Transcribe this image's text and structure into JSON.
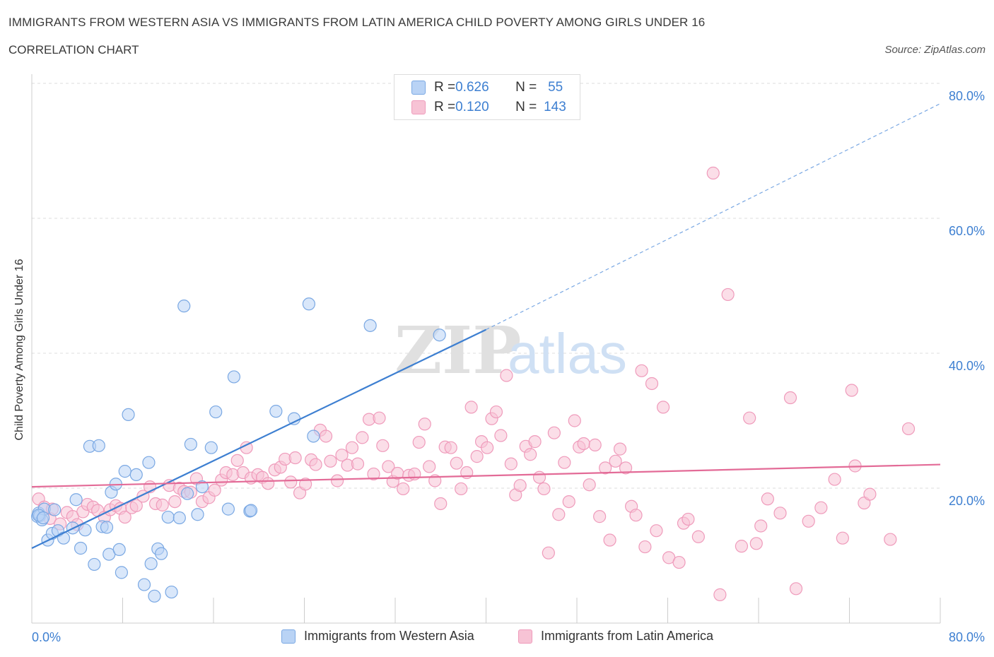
{
  "title": "IMMIGRANTS FROM WESTERN ASIA VS IMMIGRANTS FROM LATIN AMERICA CHILD POVERTY AMONG GIRLS UNDER 16",
  "subtitle": "CORRELATION CHART",
  "source": "Source: ZipAtlas.com",
  "watermark": {
    "zip": "ZIP",
    "atlas": "atlas"
  },
  "colors": {
    "blue": "#3d7fd1",
    "blue_fill": "#b9d3f5",
    "blue_stroke": "#7aa8e3",
    "pink": "#e36b97",
    "pink_fill": "#f7c3d5",
    "pink_stroke": "#ef9bbb",
    "grid": "#dcdcdc",
    "axis_text": "#3d7fd1"
  },
  "correlation_box": {
    "rows": [
      {
        "r_label": "R = ",
        "r_value": "0.626",
        "n_label": "N = ",
        "n_value": "55"
      },
      {
        "r_label": "R = ",
        "r_value": "0.120",
        "n_label": "N = ",
        "n_value": "143"
      }
    ]
  },
  "legend": {
    "items": [
      {
        "label": "Immigrants from Western Asia"
      },
      {
        "label": "Immigrants from Latin America"
      }
    ]
  },
  "chart_data": {
    "type": "scatter",
    "title": "IMMIGRANTS FROM WESTERN ASIA VS IMMIGRANTS FROM LATIN AMERICA CHILD POVERTY AMONG GIRLS UNDER 16",
    "subtitle": "CORRELATION CHART",
    "xlabel": "",
    "ylabel": "Child Poverty Among Girls Under 16",
    "xlim": [
      0,
      80
    ],
    "ylim": [
      0,
      80
    ],
    "x_tick_labels": [
      "0.0%",
      "80.0%"
    ],
    "y_tick_labels": [
      "20.0%",
      "40.0%",
      "60.0%",
      "80.0%"
    ],
    "y_ticks": [
      20,
      40,
      60,
      80
    ],
    "grid": true,
    "legend_position": "bottom",
    "series": [
      {
        "name": "Immigrants from Western Asia",
        "r": 0.626,
        "n": 55,
        "trend": {
          "x": [
            0,
            40
          ],
          "y": [
            11.1,
            43.5
          ],
          "extended_x": [
            40,
            80
          ],
          "extended_y": [
            43.5,
            77.0
          ]
        },
        "points": [
          [
            0.5,
            15.8
          ],
          [
            0.6,
            16.3
          ],
          [
            0.7,
            15.9
          ],
          [
            0.9,
            15.3
          ],
          [
            1.1,
            16.9
          ],
          [
            1.4,
            12.3
          ],
          [
            1.8,
            13.3
          ],
          [
            2.3,
            13.7
          ],
          [
            2.8,
            12.6
          ],
          [
            3.6,
            14.1
          ],
          [
            3.9,
            18.3
          ],
          [
            4.3,
            11.1
          ],
          [
            4.7,
            13.8
          ],
          [
            5.1,
            26.2
          ],
          [
            5.5,
            8.7
          ],
          [
            5.9,
            26.3
          ],
          [
            6.2,
            14.3
          ],
          [
            6.6,
            14.2
          ],
          [
            6.8,
            10.2
          ],
          [
            7.0,
            19.4
          ],
          [
            7.4,
            20.6
          ],
          [
            7.7,
            10.9
          ],
          [
            7.9,
            7.5
          ],
          [
            8.2,
            22.5
          ],
          [
            8.5,
            30.9
          ],
          [
            9.2,
            22.0
          ],
          [
            9.9,
            5.7
          ],
          [
            10.3,
            23.8
          ],
          [
            10.5,
            8.8
          ],
          [
            10.8,
            4.0
          ],
          [
            11.1,
            11.0
          ],
          [
            11.4,
            10.3
          ],
          [
            12.0,
            15.7
          ],
          [
            12.3,
            4.6
          ],
          [
            13.0,
            15.6
          ],
          [
            13.4,
            47.0
          ],
          [
            13.7,
            19.2
          ],
          [
            14.0,
            26.5
          ],
          [
            14.6,
            16.1
          ],
          [
            15.0,
            20.2
          ],
          [
            15.8,
            26.0
          ],
          [
            16.2,
            31.3
          ],
          [
            17.3,
            16.9
          ],
          [
            17.8,
            36.5
          ],
          [
            19.2,
            16.6
          ],
          [
            19.3,
            16.7
          ],
          [
            21.5,
            31.4
          ],
          [
            23.1,
            30.3
          ],
          [
            24.4,
            47.3
          ],
          [
            24.8,
            27.7
          ],
          [
            29.8,
            44.1
          ],
          [
            35.9,
            42.7
          ],
          [
            0.6,
            16.0
          ],
          [
            1.0,
            15.6
          ],
          [
            2.0,
            16.8
          ]
        ]
      },
      {
        "name": "Immigrants from Latin America",
        "r": 0.12,
        "n": 143,
        "trend": {
          "x": [
            0,
            80
          ],
          "y": [
            20.2,
            23.5
          ]
        },
        "points": [
          [
            0.6,
            18.4
          ],
          [
            1.1,
            17.2
          ],
          [
            1.6,
            15.5
          ],
          [
            1.8,
            16.9
          ],
          [
            2.5,
            14.7
          ],
          [
            3.1,
            16.4
          ],
          [
            3.6,
            15.8
          ],
          [
            4.0,
            14.6
          ],
          [
            4.5,
            16.5
          ],
          [
            4.9,
            17.6
          ],
          [
            5.4,
            17.2
          ],
          [
            5.8,
            16.7
          ],
          [
            6.4,
            15.7
          ],
          [
            6.9,
            16.8
          ],
          [
            7.4,
            17.4
          ],
          [
            7.8,
            17.0
          ],
          [
            8.2,
            15.7
          ],
          [
            8.8,
            17.1
          ],
          [
            9.2,
            17.4
          ],
          [
            9.8,
            18.8
          ],
          [
            10.4,
            20.2
          ],
          [
            10.9,
            17.7
          ],
          [
            11.5,
            17.5
          ],
          [
            12.1,
            20.4
          ],
          [
            12.6,
            18.0
          ],
          [
            13.0,
            20.0
          ],
          [
            13.4,
            19.5
          ],
          [
            14.0,
            19.4
          ],
          [
            14.5,
            21.4
          ],
          [
            15.0,
            18.0
          ],
          [
            15.6,
            18.6
          ],
          [
            16.1,
            19.7
          ],
          [
            16.7,
            21.2
          ],
          [
            17.1,
            22.3
          ],
          [
            17.7,
            22.0
          ],
          [
            18.1,
            24.1
          ],
          [
            18.6,
            22.3
          ],
          [
            18.9,
            26.0
          ],
          [
            19.3,
            21.5
          ],
          [
            19.9,
            22.0
          ],
          [
            20.3,
            21.6
          ],
          [
            20.8,
            20.7
          ],
          [
            21.4,
            22.7
          ],
          [
            21.9,
            23.1
          ],
          [
            22.3,
            24.3
          ],
          [
            22.8,
            20.9
          ],
          [
            23.2,
            24.5
          ],
          [
            23.6,
            19.3
          ],
          [
            24.1,
            20.6
          ],
          [
            24.6,
            24.2
          ],
          [
            25.0,
            23.5
          ],
          [
            25.4,
            28.6
          ],
          [
            25.9,
            27.7
          ],
          [
            26.3,
            24.0
          ],
          [
            26.9,
            21.1
          ],
          [
            27.3,
            24.9
          ],
          [
            27.8,
            23.4
          ],
          [
            28.2,
            26.0
          ],
          [
            28.7,
            23.6
          ],
          [
            29.1,
            27.5
          ],
          [
            29.7,
            30.2
          ],
          [
            30.1,
            22.1
          ],
          [
            30.6,
            30.4
          ],
          [
            30.9,
            26.3
          ],
          [
            31.4,
            23.2
          ],
          [
            31.8,
            21.0
          ],
          [
            32.2,
            22.2
          ],
          [
            32.7,
            19.9
          ],
          [
            33.2,
            21.9
          ],
          [
            33.7,
            22.1
          ],
          [
            34.1,
            26.8
          ],
          [
            34.6,
            29.5
          ],
          [
            35.0,
            23.2
          ],
          [
            35.5,
            21.1
          ],
          [
            36.0,
            17.7
          ],
          [
            36.4,
            26.1
          ],
          [
            36.9,
            26.0
          ],
          [
            37.4,
            23.7
          ],
          [
            37.8,
            19.9
          ],
          [
            38.3,
            22.3
          ],
          [
            38.7,
            32.0
          ],
          [
            39.2,
            24.7
          ],
          [
            39.6,
            26.9
          ],
          [
            40.1,
            26.0
          ],
          [
            40.5,
            30.3
          ],
          [
            40.9,
            31.3
          ],
          [
            41.3,
            27.8
          ],
          [
            41.8,
            36.7
          ],
          [
            42.2,
            23.6
          ],
          [
            42.6,
            19.0
          ],
          [
            43.0,
            20.4
          ],
          [
            43.5,
            26.2
          ],
          [
            43.9,
            25.0
          ],
          [
            44.3,
            26.9
          ],
          [
            44.7,
            21.6
          ],
          [
            45.1,
            19.9
          ],
          [
            45.5,
            10.4
          ],
          [
            46.0,
            28.2
          ],
          [
            46.4,
            16.1
          ],
          [
            46.9,
            23.8
          ],
          [
            47.3,
            18.0
          ],
          [
            47.8,
            30.0
          ],
          [
            48.2,
            26.1
          ],
          [
            48.6,
            26.6
          ],
          [
            49.1,
            20.5
          ],
          [
            49.6,
            26.4
          ],
          [
            50.0,
            15.8
          ],
          [
            50.5,
            23.0
          ],
          [
            50.9,
            12.3
          ],
          [
            51.4,
            24.0
          ],
          [
            51.8,
            25.8
          ],
          [
            52.3,
            23.0
          ],
          [
            52.8,
            17.3
          ],
          [
            53.2,
            16.0
          ],
          [
            53.7,
            37.4
          ],
          [
            54.0,
            11.3
          ],
          [
            54.6,
            35.5
          ],
          [
            55.0,
            13.7
          ],
          [
            55.6,
            32.0
          ],
          [
            56.1,
            9.7
          ],
          [
            57.0,
            9.0
          ],
          [
            57.4,
            14.8
          ],
          [
            57.8,
            15.4
          ],
          [
            58.7,
            12.8
          ],
          [
            60.0,
            66.7
          ],
          [
            60.6,
            4.2
          ],
          [
            61.3,
            48.7
          ],
          [
            62.5,
            11.4
          ],
          [
            63.2,
            30.4
          ],
          [
            63.8,
            11.8
          ],
          [
            64.2,
            14.4
          ],
          [
            64.8,
            18.4
          ],
          [
            65.9,
            16.3
          ],
          [
            66.8,
            33.4
          ],
          [
            67.3,
            5.1
          ],
          [
            68.4,
            15.1
          ],
          [
            69.5,
            17.1
          ],
          [
            70.7,
            21.3
          ],
          [
            71.4,
            12.6
          ],
          [
            72.2,
            34.5
          ],
          [
            72.5,
            23.3
          ],
          [
            73.3,
            17.8
          ],
          [
            73.8,
            19.1
          ],
          [
            75.6,
            12.4
          ],
          [
            77.2,
            28.8
          ]
        ]
      }
    ]
  }
}
